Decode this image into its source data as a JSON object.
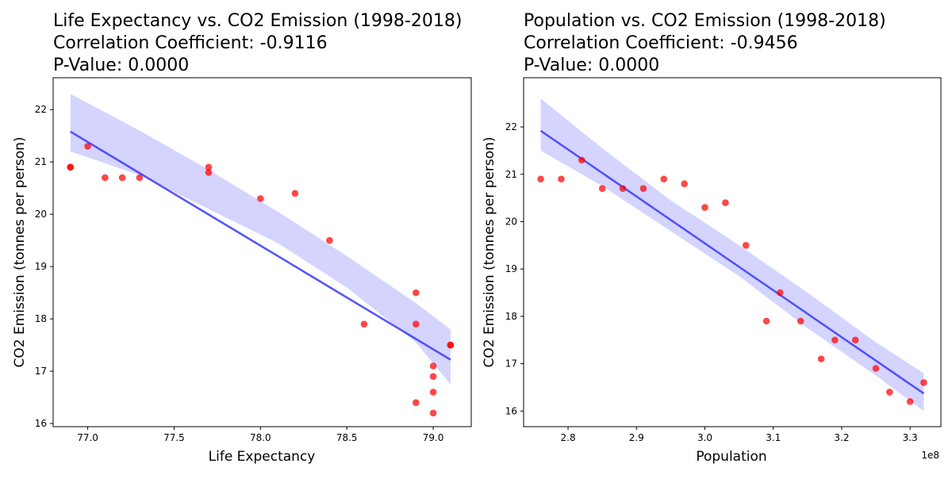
{
  "chart_data": [
    {
      "type": "scatter",
      "title_lines": [
        "Life Expectancy vs. CO2 Emission (1998-2018)",
        "Correlation Coefficient: -0.9116",
        "P-Value: 0.0000"
      ],
      "xlabel": "Life Expectancy",
      "ylabel": "CO2 Emission (tonnes per person)",
      "xlim": [
        76.8,
        79.22
      ],
      "ylim": [
        15.94,
        22.61
      ],
      "xticks": [
        77.0,
        77.5,
        78.0,
        78.5,
        79.0
      ],
      "xtick_labels": [
        "77.0",
        "77.5",
        "78.0",
        "78.5",
        "79.0"
      ],
      "yticks": [
        16,
        17,
        18,
        19,
        20,
        21,
        22
      ],
      "ytick_labels": [
        "16",
        "17",
        "18",
        "19",
        "20",
        "21",
        "22"
      ],
      "x_offset_label": "",
      "grid": false,
      "point_color": "#ff0000",
      "line_color": "#4040ff",
      "band_color": "#d4d4ff",
      "points": [
        {
          "x": 76.9,
          "y": 20.9
        },
        {
          "x": 76.9,
          "y": 20.9
        },
        {
          "x": 77.0,
          "y": 21.3
        },
        {
          "x": 77.1,
          "y": 20.7
        },
        {
          "x": 77.2,
          "y": 20.7
        },
        {
          "x": 77.3,
          "y": 20.7
        },
        {
          "x": 77.7,
          "y": 20.9
        },
        {
          "x": 77.7,
          "y": 20.8
        },
        {
          "x": 78.0,
          "y": 20.3
        },
        {
          "x": 78.2,
          "y": 20.4
        },
        {
          "x": 78.4,
          "y": 19.5
        },
        {
          "x": 78.6,
          "y": 17.9
        },
        {
          "x": 78.9,
          "y": 18.5
        },
        {
          "x": 78.9,
          "y": 17.9
        },
        {
          "x": 78.9,
          "y": 16.4
        },
        {
          "x": 79.0,
          "y": 17.1
        },
        {
          "x": 79.0,
          "y": 16.9
        },
        {
          "x": 79.0,
          "y": 16.6
        },
        {
          "x": 79.0,
          "y": 16.2
        },
        {
          "x": 79.1,
          "y": 17.5
        },
        {
          "x": 79.1,
          "y": 17.5
        }
      ],
      "regression": {
        "x": [
          76.9,
          79.1
        ],
        "y": [
          21.58,
          17.22
        ]
      },
      "band": {
        "x": [
          76.9,
          77.3,
          77.7,
          78.1,
          78.5,
          78.9,
          79.1
        ],
        "upper": [
          22.3,
          21.6,
          20.85,
          20.05,
          19.2,
          18.3,
          17.8
        ],
        "lower": [
          21.2,
          20.75,
          20.1,
          19.45,
          18.6,
          17.55,
          16.75
        ]
      }
    },
    {
      "type": "scatter",
      "title_lines": [
        "Population vs. CO2 Emission (1998-2018)",
        "Correlation Coefficient: -0.9456",
        "P-Value: 0.0000"
      ],
      "xlabel": "Population",
      "ylabel": "CO2 Emission (tonnes per person)",
      "xlim": [
        2.735,
        3.345
      ],
      "ylim": [
        15.67,
        23.04
      ],
      "xticks": [
        2.8,
        2.9,
        3.0,
        3.1,
        3.2,
        3.3
      ],
      "xtick_labels": [
        "2.8",
        "2.9",
        "3.0",
        "3.1",
        "3.2",
        "3.3"
      ],
      "yticks": [
        16,
        17,
        18,
        19,
        20,
        21,
        22
      ],
      "ytick_labels": [
        "16",
        "17",
        "18",
        "19",
        "20",
        "21",
        "22"
      ],
      "x_offset_label": "1e8",
      "grid": false,
      "point_color": "#ff0000",
      "line_color": "#4040ff",
      "band_color": "#d4d4ff",
      "points": [
        {
          "x": 2.76,
          "y": 20.9
        },
        {
          "x": 2.79,
          "y": 20.9
        },
        {
          "x": 2.82,
          "y": 21.3
        },
        {
          "x": 2.85,
          "y": 20.7
        },
        {
          "x": 2.88,
          "y": 20.7
        },
        {
          "x": 2.91,
          "y": 20.7
        },
        {
          "x": 2.94,
          "y": 20.9
        },
        {
          "x": 2.97,
          "y": 20.8
        },
        {
          "x": 3.0,
          "y": 20.3
        },
        {
          "x": 3.03,
          "y": 20.4
        },
        {
          "x": 3.06,
          "y": 19.5
        },
        {
          "x": 3.09,
          "y": 17.9
        },
        {
          "x": 3.11,
          "y": 18.5
        },
        {
          "x": 3.14,
          "y": 17.9
        },
        {
          "x": 3.17,
          "y": 17.1
        },
        {
          "x": 3.19,
          "y": 17.5
        },
        {
          "x": 3.22,
          "y": 17.5
        },
        {
          "x": 3.25,
          "y": 16.9
        },
        {
          "x": 3.27,
          "y": 16.4
        },
        {
          "x": 3.3,
          "y": 16.2
        },
        {
          "x": 3.32,
          "y": 16.6
        }
      ],
      "regression": {
        "x": [
          2.76,
          3.32
        ],
        "y": [
          21.92,
          16.37
        ]
      },
      "band": {
        "x": [
          2.76,
          2.85,
          2.95,
          3.05,
          3.15,
          3.25,
          3.32
        ],
        "upper": [
          22.6,
          21.55,
          20.45,
          19.5,
          18.5,
          17.45,
          16.8
        ],
        "lower": [
          21.5,
          20.75,
          19.8,
          18.85,
          17.75,
          16.75,
          16.0
        ]
      }
    }
  ]
}
